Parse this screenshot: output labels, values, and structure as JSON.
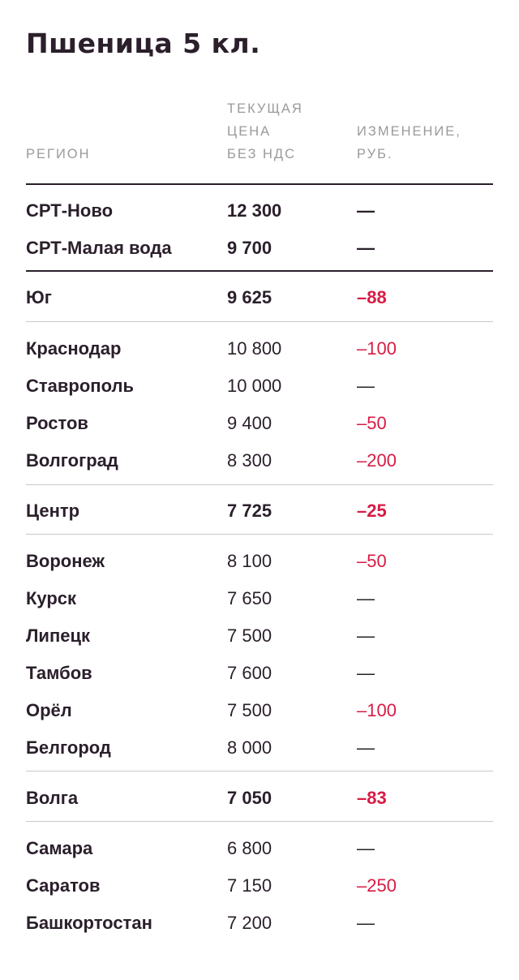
{
  "title": "Пшеница 5 кл.",
  "header": {
    "region": "РЕГИОН",
    "price": [
      "ТЕКУЩАЯ",
      "ЦЕНА",
      "БЕЗ НДС"
    ],
    "change": [
      "ИЗМЕНЕНИЕ,",
      "РУБ."
    ]
  },
  "colors": {
    "text": "#2a1f2b",
    "muted": "#9a9a9e",
    "negative": "#d81b45",
    "rule_light": "#c9c9cc"
  },
  "rows": [
    {
      "region": "СРТ-Ново",
      "price": "12 300",
      "change": "—",
      "summary": true,
      "negative": false
    },
    {
      "region": "СРТ-Малая вода",
      "price": "9 700",
      "change": "—",
      "summary": true,
      "negative": false
    },
    {
      "region": "Юг",
      "price": "9 625",
      "change": "–88",
      "summary": true,
      "negative": true
    },
    {
      "region": "Краснодар",
      "price": "10 800",
      "change": "–100",
      "summary": false,
      "negative": true
    },
    {
      "region": "Ставрополь",
      "price": "10 000",
      "change": "—",
      "summary": false,
      "negative": false
    },
    {
      "region": "Ростов",
      "price": "9 400",
      "change": "–50",
      "summary": false,
      "negative": true
    },
    {
      "region": "Волгоград",
      "price": "8 300",
      "change": "–200",
      "summary": false,
      "negative": true
    },
    {
      "region": "Центр",
      "price": "7 725",
      "change": "–25",
      "summary": true,
      "negative": true
    },
    {
      "region": "Воронеж",
      "price": "8 100",
      "change": "–50",
      "summary": false,
      "negative": true
    },
    {
      "region": "Курск",
      "price": "7 650",
      "change": "—",
      "summary": false,
      "negative": false
    },
    {
      "region": "Липецк",
      "price": "7 500",
      "change": "—",
      "summary": false,
      "negative": false
    },
    {
      "region": "Тамбов",
      "price": "7 600",
      "change": "—",
      "summary": false,
      "negative": false
    },
    {
      "region": "Орёл",
      "price": "7 500",
      "change": "–100",
      "summary": false,
      "negative": true
    },
    {
      "region": "Белгород",
      "price": "8 000",
      "change": "—",
      "summary": false,
      "negative": false
    },
    {
      "region": "Волга",
      "price": "7 050",
      "change": "–83",
      "summary": true,
      "negative": true
    },
    {
      "region": "Самара",
      "price": "6 800",
      "change": "—",
      "summary": false,
      "negative": false
    },
    {
      "region": "Саратов",
      "price": "7 150",
      "change": "–250",
      "summary": false,
      "negative": true
    },
    {
      "region": "Башкортостан",
      "price": "7 200",
      "change": "—",
      "summary": false,
      "negative": false
    }
  ]
}
